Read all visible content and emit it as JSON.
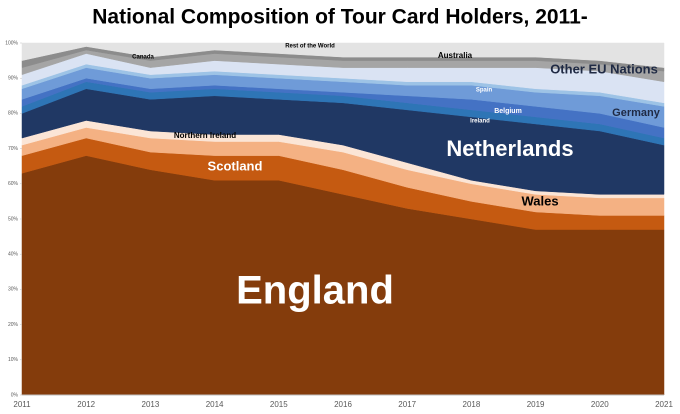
{
  "chart_data": {
    "type": "stacked-area",
    "title": "National Composition of Tour Card Holders, 2011-",
    "categories": [
      "2011",
      "2012",
      "2013",
      "2014",
      "2015",
      "2016",
      "2017",
      "2018",
      "2019",
      "2020",
      "2021"
    ],
    "ylim": [
      0,
      100
    ],
    "yticks": [
      {
        "value": 0,
        "label": "0%"
      },
      {
        "value": 10,
        "label": "10%"
      },
      {
        "value": 20,
        "label": "20%"
      },
      {
        "value": 30,
        "label": "30%"
      },
      {
        "value": 40,
        "label": "40%"
      },
      {
        "value": 50,
        "label": "50%"
      },
      {
        "value": 60,
        "label": "60%"
      },
      {
        "value": 70,
        "label": "70%"
      },
      {
        "value": 80,
        "label": "80%"
      },
      {
        "value": 90,
        "label": "90%"
      },
      {
        "value": 100,
        "label": "100%"
      }
    ],
    "series": [
      {
        "name": "England",
        "color": "#843c0c",
        "values": [
          63,
          68,
          64,
          61,
          61,
          57,
          53,
          50,
          47,
          47,
          47
        ]
      },
      {
        "name": "Scotland",
        "color": "#c55a11",
        "values": [
          5,
          5,
          5,
          7,
          7,
          7,
          6,
          5,
          5,
          4,
          4
        ]
      },
      {
        "name": "Wales",
        "color": "#f4b183",
        "values": [
          3,
          3,
          4,
          4,
          4,
          5,
          5,
          5,
          5,
          5,
          5
        ]
      },
      {
        "name": "Northern Ireland",
        "color": "#fbe5d6",
        "values": [
          2,
          2,
          2,
          2,
          2,
          2,
          2,
          1,
          1,
          1,
          1
        ]
      },
      {
        "name": "Netherlands",
        "color": "#203864",
        "values": [
          7,
          9,
          9,
          11,
          10,
          12,
          15,
          18,
          19,
          18,
          14
        ]
      },
      {
        "name": "Ireland",
        "color": "#2e75b6",
        "values": [
          2,
          2,
          2,
          2,
          2,
          2,
          2,
          2,
          2,
          2,
          2
        ]
      },
      {
        "name": "Belgium",
        "color": "#4472c4",
        "values": [
          2,
          1,
          1,
          1,
          1,
          1,
          2,
          3,
          3,
          3,
          3
        ]
      },
      {
        "name": "Germany",
        "color": "#6f9bd8",
        "values": [
          3,
          3,
          3,
          3,
          3,
          3,
          3,
          4,
          4,
          5,
          6
        ]
      },
      {
        "name": "Spain",
        "color": "#9dc3e6",
        "values": [
          1,
          1,
          1,
          1,
          1,
          1,
          1,
          1,
          1,
          1,
          1
        ]
      },
      {
        "name": "Other EU Nations",
        "color": "#dae3f3",
        "values": [
          3,
          3,
          2,
          3,
          3,
          3,
          4,
          4,
          6,
          6,
          6
        ]
      },
      {
        "name": "Australia",
        "color": "#a5a5a5",
        "values": [
          2,
          1,
          2,
          2,
          2,
          2,
          2,
          2,
          2,
          2,
          3
        ]
      },
      {
        "name": "Canada",
        "color": "#8c8c8c",
        "values": [
          2,
          1,
          1,
          1,
          1,
          1,
          1,
          1,
          1,
          1,
          1
        ]
      },
      {
        "name": "Rest of the World",
        "color": "#e3e3e3",
        "values": [
          5,
          1,
          4,
          2,
          3,
          4,
          4,
          4,
          4,
          5,
          7
        ]
      }
    ]
  }
}
